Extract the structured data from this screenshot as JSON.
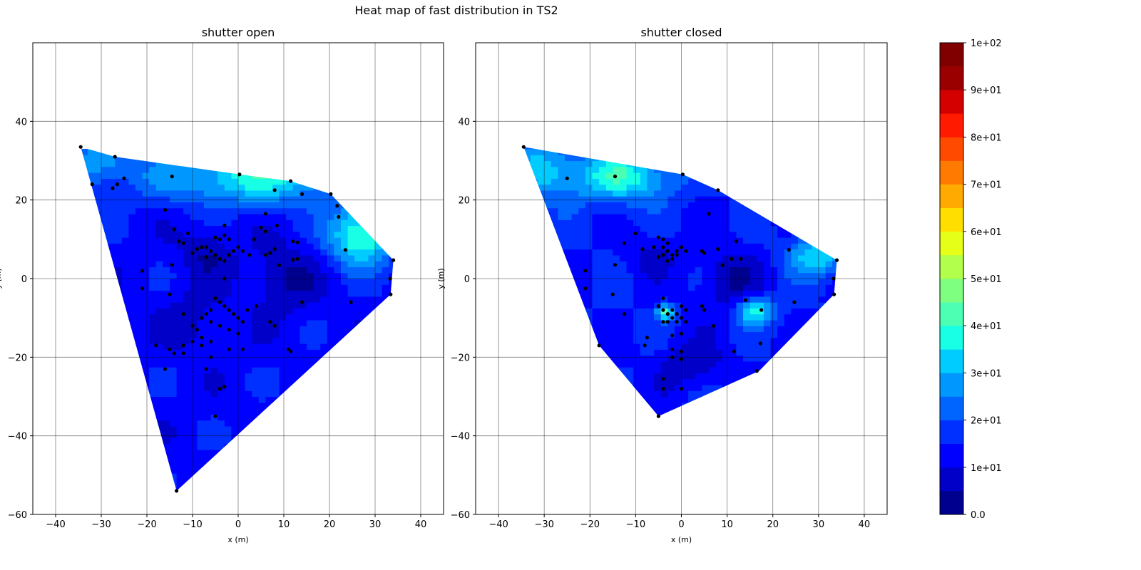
{
  "figure": {
    "title": "Heat map of fast distribution in TS2"
  },
  "chart_data": [
    {
      "type": "heatmap",
      "title": "shutter open",
      "xlabel": "x (m)",
      "ylabel": "y (m)",
      "xlim": [
        -45,
        45
      ],
      "ylim": [
        -60,
        60
      ],
      "xticks": [
        -40,
        -30,
        -20,
        -10,
        0,
        10,
        20,
        30,
        40
      ],
      "yticks": [
        -60,
        -40,
        -20,
        0,
        20,
        40
      ],
      "grid": true,
      "hull": [
        [
          -34.5,
          33.5
        ],
        [
          -27,
          31
        ],
        [
          0.3,
          26.5
        ],
        [
          11.5,
          24.8
        ],
        [
          20.3,
          21.5
        ],
        [
          34,
          4.7
        ],
        [
          33.4,
          -4
        ],
        [
          -13.5,
          -54
        ]
      ],
      "points": [
        [
          -34.5,
          33.5
        ],
        [
          -32,
          24
        ],
        [
          -27,
          31
        ],
        [
          -27.5,
          23
        ],
        [
          -26.5,
          24
        ],
        [
          -25,
          25.5
        ],
        [
          -14.5,
          26
        ],
        [
          0.3,
          26.5
        ],
        [
          11.5,
          24.8
        ],
        [
          20.3,
          21.5
        ],
        [
          21.7,
          18.5
        ],
        [
          22,
          15.7
        ],
        [
          23.5,
          7.3
        ],
        [
          34,
          4.7
        ],
        [
          33.3,
          0
        ],
        [
          33.4,
          -4
        ],
        [
          24.7,
          -6
        ],
        [
          14,
          -6
        ],
        [
          14,
          21.5
        ],
        [
          8,
          22.5
        ],
        [
          6,
          16.5
        ],
        [
          8.5,
          13.5
        ],
        [
          5,
          13
        ],
        [
          6,
          12
        ],
        [
          3.5,
          10
        ],
        [
          12,
          9.5
        ],
        [
          13,
          9.2
        ],
        [
          13,
          5
        ],
        [
          12,
          4.8
        ],
        [
          9,
          3.4
        ],
        [
          8,
          7.5
        ],
        [
          7,
          6.5
        ],
        [
          6,
          6
        ],
        [
          2.5,
          6
        ],
        [
          -3,
          13.5
        ],
        [
          -5,
          10.5
        ],
        [
          -4,
          10
        ],
        [
          -3,
          11
        ],
        [
          -2,
          10
        ],
        [
          -11,
          11.5
        ],
        [
          -12,
          9
        ],
        [
          -13,
          9.5
        ],
        [
          -14,
          12.5
        ],
        [
          -16,
          17.5
        ],
        [
          -8,
          8
        ],
        [
          -7,
          8
        ],
        [
          -6,
          7
        ],
        [
          -5,
          6
        ],
        [
          -4,
          5
        ],
        [
          -3,
          4.5
        ],
        [
          -2,
          6
        ],
        [
          -1,
          7
        ],
        [
          0,
          8
        ],
        [
          1,
          7
        ],
        [
          -9,
          7.5
        ],
        [
          -10,
          6.5
        ],
        [
          -7,
          5.5
        ],
        [
          -14.5,
          3.5
        ],
        [
          -21,
          2
        ],
        [
          -21,
          -2.5
        ],
        [
          -15,
          -4
        ],
        [
          -5,
          -5
        ],
        [
          -4,
          -6
        ],
        [
          -3,
          -7
        ],
        [
          -2,
          -8
        ],
        [
          -1,
          -9
        ],
        [
          0,
          -10
        ],
        [
          1,
          -11
        ],
        [
          -6,
          -8
        ],
        [
          -7,
          -9
        ],
        [
          -8,
          -10
        ],
        [
          -6,
          -11
        ],
        [
          -4,
          -12
        ],
        [
          -2,
          -13
        ],
        [
          0,
          -14
        ],
        [
          4,
          -7
        ],
        [
          2,
          -8
        ],
        [
          -12,
          -9
        ],
        [
          -10,
          -12
        ],
        [
          -9,
          -13
        ],
        [
          -8,
          -15
        ],
        [
          -6,
          -16
        ],
        [
          -10,
          -16
        ],
        [
          -12,
          -17
        ],
        [
          -18,
          -17
        ],
        [
          -15,
          -18
        ],
        [
          -14,
          -19
        ],
        [
          -12,
          -19
        ],
        [
          -8,
          -17
        ],
        [
          -2,
          -18
        ],
        [
          1,
          -18
        ],
        [
          -6,
          -20
        ],
        [
          -16,
          -23
        ],
        [
          -7,
          -23
        ],
        [
          -4,
          -28
        ],
        [
          -3,
          -27.5
        ],
        [
          -5,
          -35
        ],
        [
          -13.5,
          -54
        ],
        [
          11,
          -18
        ],
        [
          11.5,
          -18.5
        ],
        [
          8,
          -12
        ],
        [
          7,
          -11
        ],
        [
          -3,
          0
        ]
      ],
      "colorbar": {
        "levels": [
          0,
          5,
          10,
          15,
          20,
          25,
          30,
          35,
          40,
          45,
          50,
          55,
          60,
          65,
          70,
          75,
          80,
          85,
          90,
          95,
          100
        ],
        "ticks": [
          0,
          10,
          20,
          30,
          40,
          50,
          60,
          70,
          80,
          90,
          100
        ],
        "tick_labels": [
          "0.0",
          "1e+01",
          "2e+01",
          "3e+01",
          "4e+01",
          "5e+01",
          "6e+01",
          "7e+01",
          "8e+01",
          "9e+01",
          "1e+02"
        ],
        "colors": [
          "#00008f",
          "#0000c8",
          "#0000ff",
          "#0030ff",
          "#0064ff",
          "#0098ff",
          "#00ccff",
          "#18ffe6",
          "#4cffb2",
          "#7fff7f",
          "#b2ff4c",
          "#e6ff18",
          "#ffde00",
          "#ffaa00",
          "#ff7a00",
          "#ff4a00",
          "#ff1a00",
          "#d40000",
          "#9a0000",
          "#800000"
        ]
      }
    },
    {
      "type": "heatmap",
      "title": "shutter closed",
      "xlabel": "x (m)",
      "ylabel": "y (m)",
      "xlim": [
        -45,
        45
      ],
      "ylim": [
        -60,
        60
      ],
      "xticks": [
        -40,
        -30,
        -20,
        -10,
        0,
        10,
        20,
        30,
        40
      ],
      "yticks": [
        -60,
        -40,
        -20,
        0,
        20,
        40
      ],
      "grid": true,
      "hull": [
        [
          -34.5,
          33.5
        ],
        [
          0.3,
          26.5
        ],
        [
          8,
          22.5
        ],
        [
          34,
          4.7
        ],
        [
          33.4,
          -4
        ],
        [
          17,
          -23.5
        ],
        [
          -5,
          -35
        ],
        [
          -18,
          -17
        ]
      ],
      "points": [
        [
          -34.5,
          33.5
        ],
        [
          -25,
          25.5
        ],
        [
          -14.5,
          26
        ],
        [
          0.3,
          26.5
        ],
        [
          8,
          22.5
        ],
        [
          6,
          16.5
        ],
        [
          23.5,
          7.3
        ],
        [
          34,
          4.7
        ],
        [
          33.3,
          0
        ],
        [
          33.4,
          -4
        ],
        [
          24.7,
          -6
        ],
        [
          17.5,
          -8
        ],
        [
          17.3,
          -16.5
        ],
        [
          16.5,
          -23.5
        ],
        [
          11.5,
          -18.5
        ],
        [
          14,
          -5.5
        ],
        [
          13,
          5
        ],
        [
          12,
          9.5
        ],
        [
          11,
          5
        ],
        [
          8,
          7.5
        ],
        [
          9,
          3.4
        ],
        [
          5,
          6.5
        ],
        [
          4.5,
          7
        ],
        [
          -10,
          11.5
        ],
        [
          -12.5,
          9
        ],
        [
          -8.5,
          7.5
        ],
        [
          -6,
          8
        ],
        [
          -5,
          10.5
        ],
        [
          -4,
          10
        ],
        [
          -3,
          9
        ],
        [
          -4,
          8
        ],
        [
          -3,
          7
        ],
        [
          -2,
          6
        ],
        [
          -1,
          7
        ],
        [
          0,
          8
        ],
        [
          1,
          7
        ],
        [
          -4,
          6
        ],
        [
          -5,
          5.5
        ],
        [
          -3,
          4.5
        ],
        [
          -2,
          5
        ],
        [
          -1,
          6
        ],
        [
          -14.5,
          3.5
        ],
        [
          -21,
          2
        ],
        [
          -21,
          -2.5
        ],
        [
          -15,
          -4
        ],
        [
          -12.5,
          -9
        ],
        [
          -4,
          -5
        ],
        [
          -5,
          -7
        ],
        [
          -4,
          -8
        ],
        [
          -3,
          -9
        ],
        [
          -2,
          -8
        ],
        [
          -1,
          -9
        ],
        [
          0,
          -7
        ],
        [
          1,
          -8
        ],
        [
          -4,
          -11
        ],
        [
          -3,
          -11
        ],
        [
          -2,
          -10
        ],
        [
          -1,
          -11
        ],
        [
          0,
          -10
        ],
        [
          1,
          -11
        ],
        [
          4.5,
          -7
        ],
        [
          5,
          -8
        ],
        [
          7,
          -12
        ],
        [
          -2,
          -14.5
        ],
        [
          0,
          -14
        ],
        [
          -7.5,
          -15
        ],
        [
          -8,
          -17
        ],
        [
          -18,
          -17
        ],
        [
          -2,
          -18
        ],
        [
          0,
          -18.5
        ],
        [
          -2,
          -20
        ],
        [
          0,
          -20.5
        ],
        [
          -4,
          -25.5
        ],
        [
          -4,
          -28
        ],
        [
          0,
          -28
        ],
        [
          -5,
          -35
        ]
      ],
      "colorbar": {
        "levels": [
          0,
          5,
          10,
          15,
          20,
          25,
          30,
          35,
          40,
          45,
          50,
          55,
          60,
          65,
          70,
          75,
          80,
          85,
          90,
          95,
          100
        ],
        "ticks": [
          0,
          10,
          20,
          30,
          40,
          50,
          60,
          70,
          80,
          90,
          100
        ],
        "tick_labels": [
          "0.0",
          "1e+01",
          "2e+01",
          "3e+01",
          "4e+01",
          "5e+01",
          "6e+01",
          "7e+01",
          "8e+01",
          "9e+01",
          "1e+02"
        ],
        "colors": [
          "#00008f",
          "#0000c8",
          "#0000ff",
          "#0030ff",
          "#0064ff",
          "#0098ff",
          "#00ccff",
          "#18ffe6",
          "#4cffb2",
          "#7fff7f",
          "#b2ff4c",
          "#e6ff18",
          "#ffde00",
          "#ffaa00",
          "#ff7a00",
          "#ff4a00",
          "#ff1a00",
          "#d40000",
          "#9a0000",
          "#800000"
        ]
      }
    }
  ]
}
